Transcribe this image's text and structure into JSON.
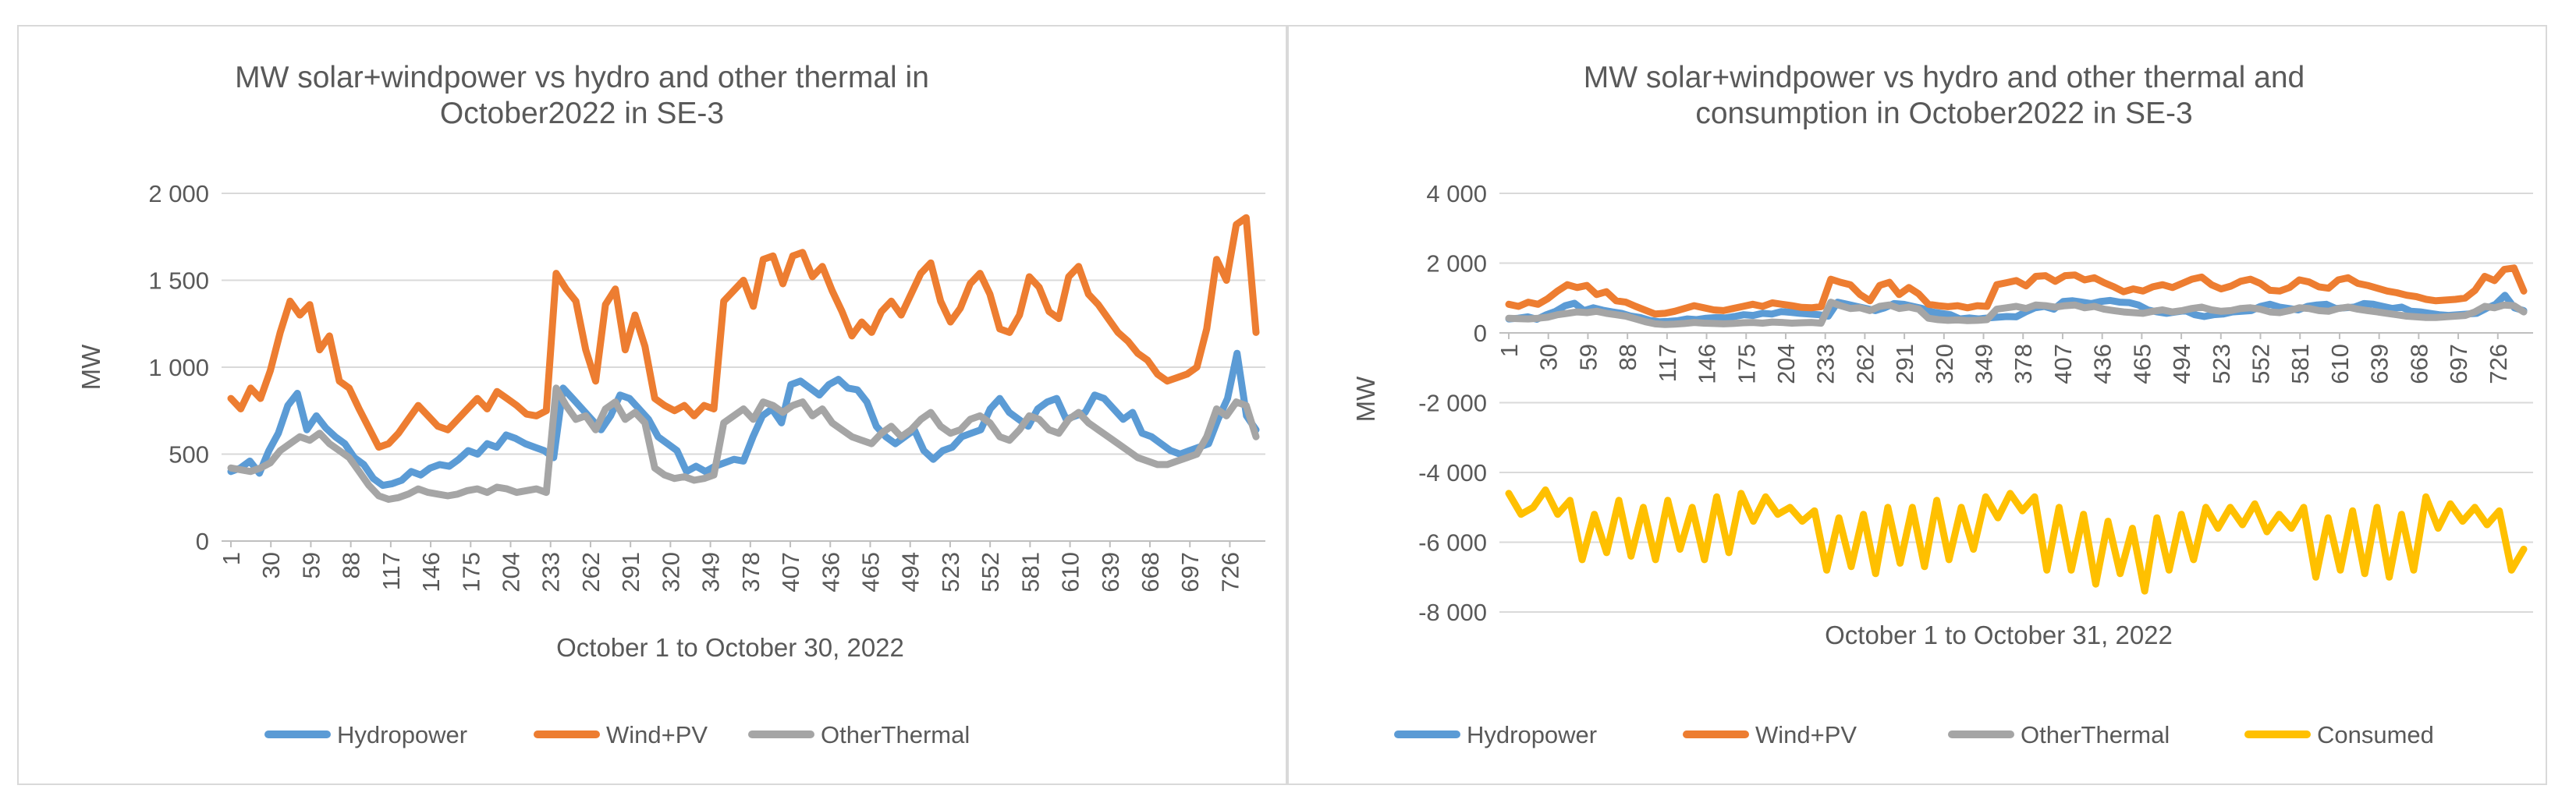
{
  "chart_data": [
    {
      "type": "line",
      "title": [
        "MW solar+windpower  vs hydro and other thermal in",
        "October2022 in SE-3"
      ],
      "xlabel": "October 1 to October 30, 2022",
      "ylabel": "MW",
      "ylim": [
        0,
        2000
      ],
      "yticks": [
        0,
        500,
        1000,
        1500,
        2000
      ],
      "ytick_labels": [
        "0",
        "500",
        "1 000",
        "1 500",
        "2 000"
      ],
      "xticks": [
        "1",
        "30",
        "59",
        "88",
        "117",
        "146",
        "175",
        "204",
        "233",
        "262",
        "291",
        "320",
        "349",
        "378",
        "407",
        "436",
        "465",
        "494",
        "523",
        "552",
        "581",
        "610",
        "639",
        "668",
        "697",
        "726"
      ],
      "x_points": 745,
      "grid": true,
      "legend_position": "bottom",
      "series": [
        {
          "name": "Hydropower",
          "color": "#5b9bd5",
          "values": [
            400,
            420,
            460,
            390,
            520,
            620,
            780,
            850,
            640,
            720,
            650,
            600,
            560,
            480,
            440,
            360,
            320,
            330,
            350,
            400,
            380,
            420,
            440,
            430,
            470,
            520,
            500,
            560,
            540,
            610,
            590,
            560,
            540,
            520,
            480,
            880,
            820,
            760,
            700,
            640,
            720,
            840,
            820,
            760,
            700,
            600,
            560,
            520,
            400,
            430,
            400,
            430,
            450,
            470,
            460,
            600,
            720,
            760,
            680,
            900,
            920,
            880,
            840,
            900,
            930,
            880,
            870,
            800,
            660,
            600,
            560,
            600,
            640,
            520,
            470,
            520,
            540,
            600,
            620,
            640,
            760,
            820,
            740,
            700,
            660,
            760,
            800,
            820,
            700,
            720,
            740,
            840,
            820,
            760,
            700,
            740,
            620,
            600,
            560,
            520,
            500,
            520,
            540,
            560,
            700,
            820,
            1080,
            720,
            640
          ]
        },
        {
          "name": "Wind+PV",
          "color": "#ed7d31",
          "values": [
            820,
            760,
            880,
            820,
            980,
            1200,
            1380,
            1300,
            1360,
            1100,
            1180,
            920,
            880,
            760,
            650,
            540,
            560,
            620,
            700,
            780,
            720,
            660,
            640,
            700,
            760,
            820,
            760,
            860,
            820,
            780,
            730,
            720,
            750,
            1540,
            1450,
            1380,
            1100,
            920,
            1360,
            1450,
            1100,
            1300,
            1120,
            820,
            780,
            750,
            780,
            720,
            780,
            760,
            1380,
            1440,
            1500,
            1350,
            1620,
            1640,
            1480,
            1640,
            1660,
            1520,
            1580,
            1440,
            1320,
            1180,
            1260,
            1200,
            1320,
            1380,
            1300,
            1420,
            1540,
            1600,
            1380,
            1260,
            1340,
            1480,
            1540,
            1420,
            1220,
            1200,
            1300,
            1520,
            1460,
            1320,
            1280,
            1520,
            1580,
            1420,
            1360,
            1280,
            1200,
            1150,
            1080,
            1040,
            960,
            920,
            940,
            960,
            1000,
            1220,
            1620,
            1500,
            1820,
            1860,
            1200
          ]
        },
        {
          "name": "OtherThermal",
          "color": "#a5a5a5",
          "values": [
            420,
            410,
            400,
            420,
            450,
            520,
            560,
            600,
            580,
            620,
            560,
            520,
            480,
            400,
            320,
            260,
            240,
            250,
            270,
            300,
            280,
            270,
            260,
            270,
            290,
            300,
            280,
            310,
            300,
            280,
            290,
            300,
            280,
            880,
            780,
            700,
            720,
            640,
            760,
            800,
            700,
            740,
            680,
            420,
            380,
            360,
            370,
            350,
            360,
            380,
            680,
            720,
            760,
            700,
            800,
            780,
            740,
            780,
            800,
            720,
            760,
            680,
            640,
            600,
            580,
            560,
            620,
            660,
            600,
            640,
            700,
            740,
            660,
            620,
            640,
            700,
            720,
            680,
            600,
            580,
            640,
            720,
            700,
            640,
            620,
            700,
            740,
            680,
            640,
            600,
            560,
            520,
            480,
            460,
            440,
            440,
            460,
            480,
            500,
            600,
            760,
            720,
            800,
            780,
            600
          ]
        }
      ]
    },
    {
      "type": "line",
      "title": [
        "MW solar+windpower  vs hydro and other thermal and",
        "consumption in October2022 in SE-3"
      ],
      "xlabel": "October 1 to October 31, 2022",
      "ylabel": "MW",
      "ylim": [
        -8000,
        4000
      ],
      "yticks": [
        -8000,
        -6000,
        -4000,
        -2000,
        0,
        2000,
        4000
      ],
      "ytick_labels": [
        "-8 000",
        "-6 000",
        "-4 000",
        "-2 000",
        "0",
        "2 000",
        "4 000"
      ],
      "xticks": [
        "1",
        "30",
        "59",
        "88",
        "117",
        "146",
        "175",
        "204",
        "233",
        "262",
        "291",
        "320",
        "349",
        "378",
        "407",
        "436",
        "465",
        "494",
        "523",
        "552",
        "581",
        "610",
        "639",
        "668",
        "697",
        "726"
      ],
      "x_points": 745,
      "grid": true,
      "legend_position": "bottom",
      "series": [
        {
          "name": "Hydropower",
          "color": "#5b9bd5",
          "values": [
            400,
            420,
            460,
            390,
            520,
            620,
            780,
            850,
            640,
            720,
            650,
            600,
            560,
            480,
            440,
            360,
            320,
            330,
            350,
            400,
            380,
            420,
            440,
            430,
            470,
            520,
            500,
            560,
            540,
            610,
            590,
            560,
            540,
            520,
            480,
            880,
            820,
            760,
            700,
            640,
            720,
            840,
            820,
            760,
            700,
            600,
            560,
            520,
            400,
            430,
            400,
            430,
            450,
            470,
            460,
            600,
            720,
            760,
            680,
            900,
            920,
            880,
            840,
            900,
            930,
            880,
            870,
            800,
            660,
            600,
            560,
            600,
            640,
            520,
            470,
            520,
            540,
            600,
            620,
            640,
            760,
            820,
            740,
            700,
            660,
            760,
            800,
            820,
            700,
            720,
            740,
            840,
            820,
            760,
            700,
            740,
            620,
            600,
            560,
            520,
            500,
            520,
            540,
            560,
            700,
            820,
            1080,
            720,
            640
          ]
        },
        {
          "name": "Wind+PV",
          "color": "#ed7d31",
          "values": [
            820,
            760,
            880,
            820,
            980,
            1200,
            1380,
            1300,
            1360,
            1100,
            1180,
            920,
            880,
            760,
            650,
            540,
            560,
            620,
            700,
            780,
            720,
            660,
            640,
            700,
            760,
            820,
            760,
            860,
            820,
            780,
            730,
            720,
            750,
            1540,
            1450,
            1380,
            1100,
            920,
            1360,
            1450,
            1100,
            1300,
            1120,
            820,
            780,
            750,
            780,
            720,
            780,
            760,
            1380,
            1440,
            1500,
            1350,
            1620,
            1640,
            1480,
            1640,
            1660,
            1520,
            1580,
            1440,
            1320,
            1180,
            1260,
            1200,
            1320,
            1380,
            1300,
            1420,
            1540,
            1600,
            1380,
            1260,
            1340,
            1480,
            1540,
            1420,
            1220,
            1200,
            1300,
            1520,
            1460,
            1320,
            1280,
            1520,
            1580,
            1420,
            1360,
            1280,
            1200,
            1150,
            1080,
            1040,
            960,
            920,
            940,
            960,
            1000,
            1220,
            1620,
            1500,
            1820,
            1860,
            1200
          ]
        },
        {
          "name": "OtherThermal",
          "color": "#a5a5a5",
          "values": [
            420,
            410,
            400,
            420,
            450,
            520,
            560,
            600,
            580,
            620,
            560,
            520,
            480,
            400,
            320,
            260,
            240,
            250,
            270,
            300,
            280,
            270,
            260,
            270,
            290,
            300,
            280,
            310,
            300,
            280,
            290,
            300,
            280,
            880,
            780,
            700,
            720,
            640,
            760,
            800,
            700,
            740,
            680,
            420,
            380,
            360,
            370,
            350,
            360,
            380,
            680,
            720,
            760,
            700,
            800,
            780,
            740,
            780,
            800,
            720,
            760,
            680,
            640,
            600,
            580,
            560,
            620,
            660,
            600,
            640,
            700,
            740,
            660,
            620,
            640,
            700,
            720,
            680,
            600,
            580,
            640,
            720,
            700,
            640,
            620,
            700,
            740,
            680,
            640,
            600,
            560,
            520,
            480,
            460,
            440,
            440,
            460,
            480,
            500,
            600,
            760,
            720,
            800,
            780,
            600
          ]
        },
        {
          "name": "Consumed",
          "color": "#ffc000",
          "values": [
            -4600,
            -5200,
            -5000,
            -4500,
            -5200,
            -4800,
            -6500,
            -5200,
            -6300,
            -4800,
            -6400,
            -5000,
            -6500,
            -4800,
            -6200,
            -5000,
            -6500,
            -4700,
            -6300,
            -4600,
            -5400,
            -4700,
            -5200,
            -5000,
            -5400,
            -5100,
            -6800,
            -5300,
            -6700,
            -5200,
            -6900,
            -5000,
            -6600,
            -5000,
            -6700,
            -4800,
            -6500,
            -5000,
            -6200,
            -4700,
            -5300,
            -4600,
            -5100,
            -4700,
            -6800,
            -5000,
            -6800,
            -5200,
            -7200,
            -5400,
            -6900,
            -5600,
            -7400,
            -5300,
            -6800,
            -5200,
            -6500,
            -5000,
            -5600,
            -5000,
            -5500,
            -4900,
            -5700,
            -5200,
            -5600,
            -5000,
            -7000,
            -5300,
            -6800,
            -5100,
            -6900,
            -5000,
            -7000,
            -5200,
            -6800,
            -4700,
            -5600,
            -4900,
            -5400,
            -5000,
            -5500,
            -5100,
            -6800,
            -6200
          ]
        }
      ]
    }
  ]
}
